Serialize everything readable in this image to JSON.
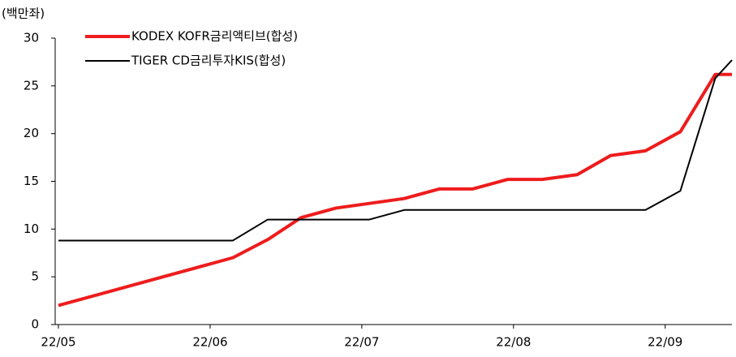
{
  "chart_data": {
    "type": "line",
    "y_label": "(백만좌)",
    "series": [
      {
        "name": "KODEX KOFR금리액티브(합성)",
        "color": "#ee1c1c",
        "x": [
          0,
          1.15,
          1.38,
          1.6,
          1.83,
          2.28,
          2.51,
          2.73,
          2.96,
          3.19,
          3.42,
          3.64,
          3.87,
          4.1,
          4.33,
          4.44
        ],
        "values": [
          2.0,
          7.0,
          8.9,
          11.2,
          12.2,
          13.2,
          14.2,
          14.2,
          15.2,
          15.2,
          15.7,
          17.7,
          18.2,
          20.2,
          26.2,
          26.2
        ]
      },
      {
        "name": "TIGER CD금리투자KIS(합성)",
        "color": "#000000",
        "x": [
          0,
          1.15,
          1.38,
          2.05,
          2.28,
          3.87,
          4.1,
          4.33,
          4.44
        ],
        "values": [
          8.8,
          8.8,
          11.0,
          11.0,
          12.0,
          12.0,
          14.0,
          25.8,
          27.7
        ]
      }
    ],
    "xlim": [
      0,
      4.44
    ],
    "xticks": [
      {
        "value": 0,
        "label": "22/05"
      },
      {
        "value": 1,
        "label": "22/06"
      },
      {
        "value": 2,
        "label": "22/07"
      },
      {
        "value": 3,
        "label": "22/08"
      },
      {
        "value": 4,
        "label": "22/09"
      }
    ],
    "ylim": [
      0,
      30
    ],
    "yticks": [
      0,
      5,
      10,
      15,
      20,
      25,
      30
    ],
    "legend": "top-left"
  }
}
